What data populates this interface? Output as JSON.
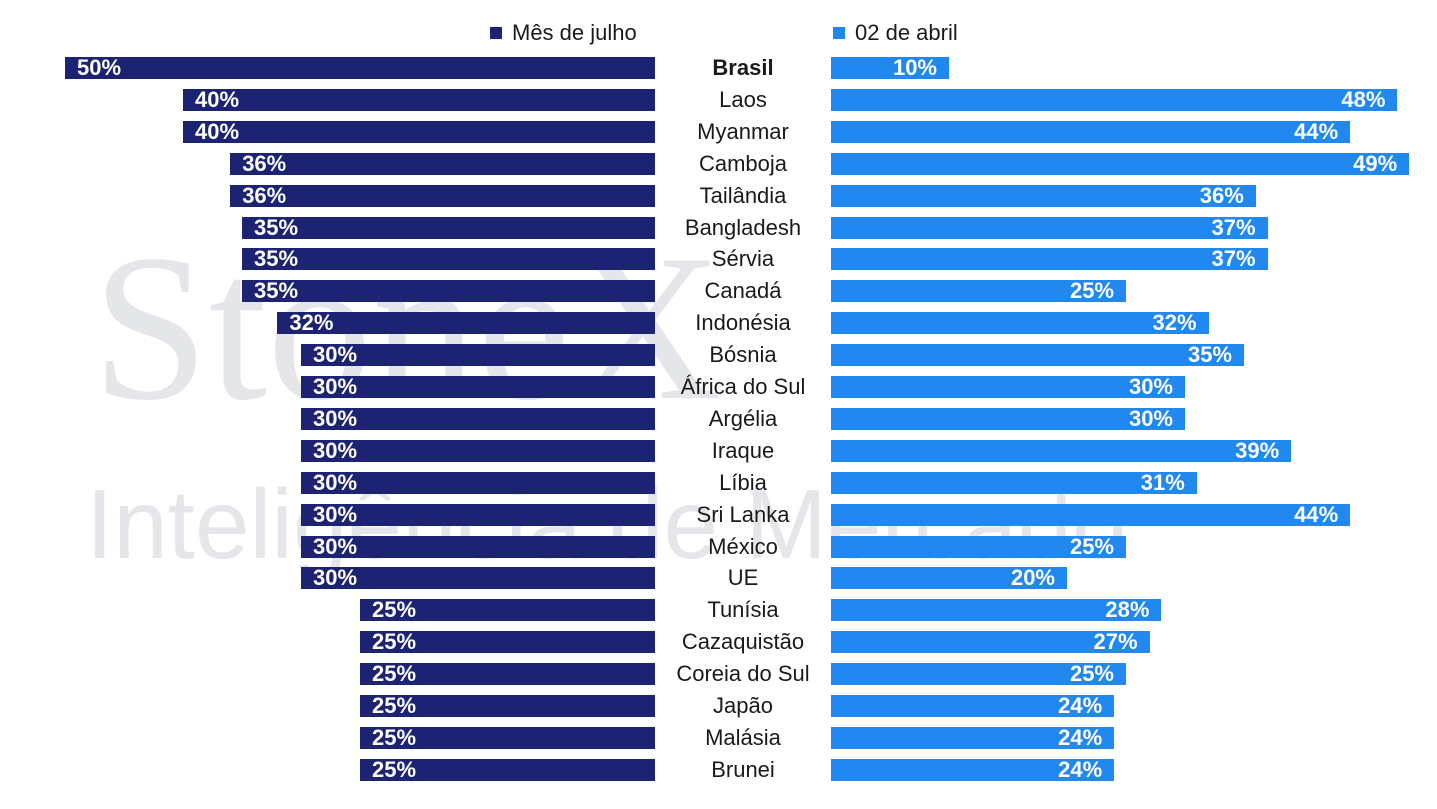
{
  "watermark": {
    "line1": "StoneX",
    "line2": "Inteligência de Mercado"
  },
  "colors": {
    "july": "#1b2372",
    "april": "#2188f0",
    "watermark": "#e5e6ea"
  },
  "chart_data": {
    "type": "bar",
    "orientation": "horizontal-butterfly",
    "categories": [
      "Brasil",
      "Laos",
      "Myanmar",
      "Camboja",
      "Tailândia",
      "Bangladesh",
      "Sérvia",
      "Canadá",
      "Indonésia",
      "Bósnia",
      "África do Sul",
      "Argélia",
      "Iraque",
      "Líbia",
      "Sri Lanka",
      "México",
      "UE",
      "Tunísia",
      "Cazaquistão",
      "Coreia do Sul",
      "Japão",
      "Malásia",
      "Brunei"
    ],
    "highlight_category": "Brasil",
    "series": [
      {
        "name": "Mês de julho",
        "side": "left",
        "values": [
          50,
          40,
          40,
          36,
          36,
          35,
          35,
          35,
          32,
          30,
          30,
          30,
          30,
          30,
          30,
          30,
          30,
          25,
          25,
          25,
          25,
          25,
          25
        ]
      },
      {
        "name": "02 de abril",
        "side": "right",
        "values": [
          10,
          48,
          44,
          49,
          36,
          37,
          37,
          25,
          32,
          35,
          30,
          30,
          39,
          31,
          44,
          25,
          20,
          28,
          27,
          25,
          24,
          24,
          24
        ]
      }
    ],
    "value_format": "percent",
    "legend_position": "top-center",
    "grid": false
  }
}
